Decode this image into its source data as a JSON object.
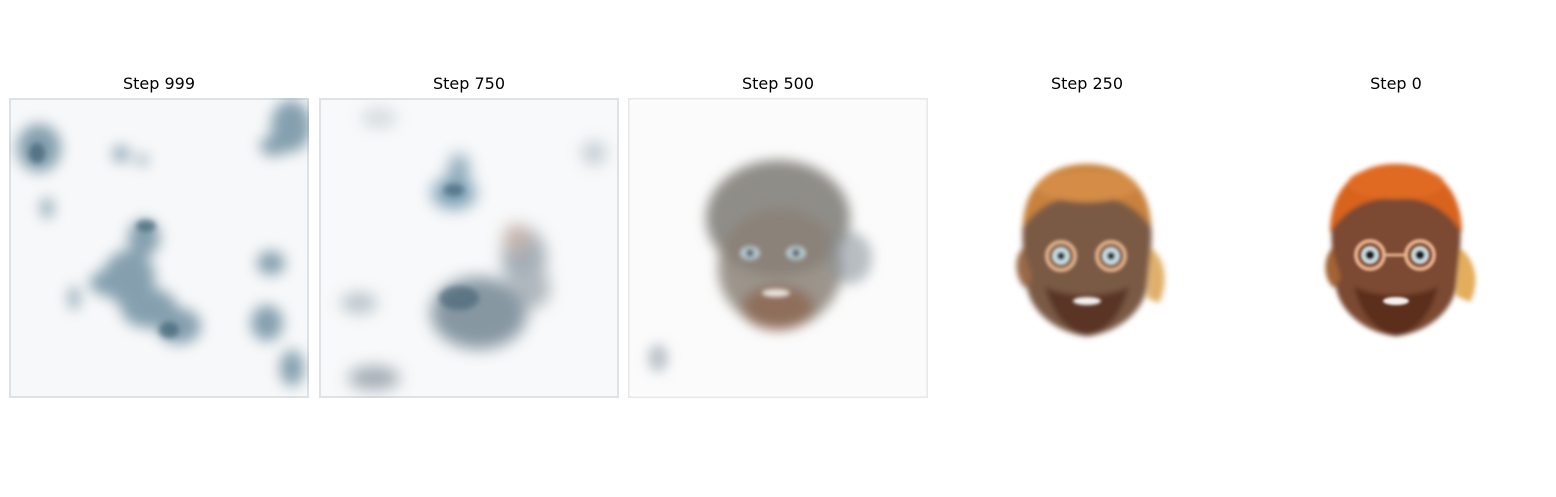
{
  "panels": [
    {
      "title": "Step 999"
    },
    {
      "title": "Step 750"
    },
    {
      "title": "Step 500"
    },
    {
      "title": "Step 250"
    },
    {
      "title": "Step 0"
    }
  ]
}
